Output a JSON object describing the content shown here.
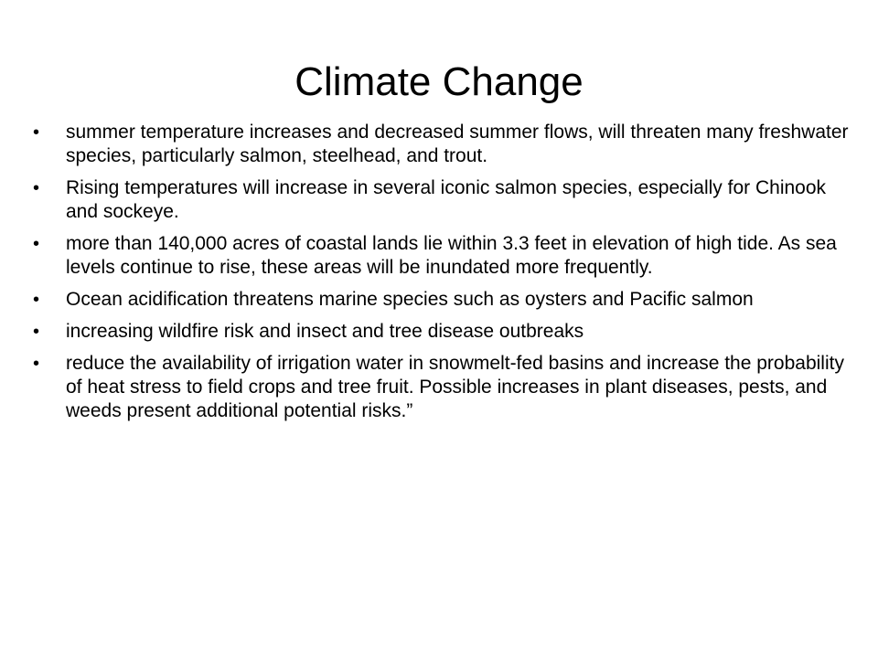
{
  "slide": {
    "title": "Climate Change",
    "bullet_glyph": "•",
    "bullets": [
      "summer temperature increases and decreased summer flows, will threaten many freshwater species, particularly salmon, steelhead, and trout.",
      "Rising temperatures will increase in several iconic salmon species, especially for Chinook and sockeye.",
      "more than 140,000 acres of coastal lands lie within 3.3 feet in elevation of high tide. As sea levels continue to rise, these areas will be inundated more frequently.",
      "Ocean acidification threatens marine species such as oysters and Pacific salmon",
      "increasing wildfire risk and insect and tree disease outbreaks",
      "reduce the availability of irrigation water in snowmelt-fed basins and increase the probability of heat stress to field crops and tree fruit. Possible increases in plant diseases, pests, and weeds present additional potential risks.”"
    ]
  }
}
